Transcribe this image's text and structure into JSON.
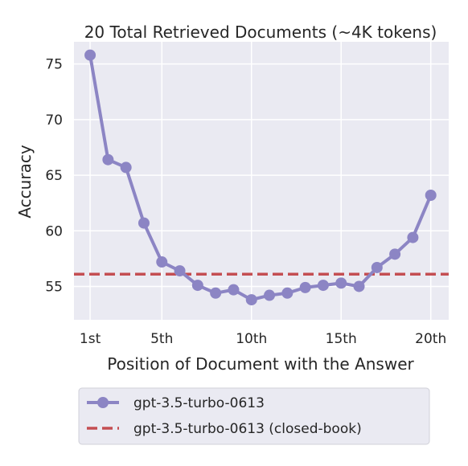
{
  "chart_data": {
    "type": "line",
    "title": "20 Total Retrieved Documents (~4K tokens)",
    "xlabel": "Position of Document with the Answer",
    "ylabel": "Accuracy",
    "x": [
      1,
      2,
      3,
      4,
      5,
      6,
      7,
      8,
      9,
      10,
      11,
      12,
      13,
      14,
      15,
      16,
      17,
      18,
      19,
      20
    ],
    "xticks": [
      1,
      5,
      10,
      15,
      20
    ],
    "xtick_labels": [
      "1st",
      "5th",
      "10th",
      "15th",
      "20th"
    ],
    "yticks": [
      55,
      60,
      65,
      70,
      75
    ],
    "yticks_labels": [
      "55",
      "60",
      "65",
      "70",
      "75"
    ],
    "xlim": [
      0.1,
      21.0
    ],
    "ylim": [
      52.0,
      77.0
    ],
    "grid": true,
    "legend_position": "bottom",
    "series": [
      {
        "name": "gpt-3.5-turbo-0613",
        "color": "#8c85c4",
        "values": [
          75.8,
          66.4,
          65.7,
          60.7,
          57.2,
          56.4,
          55.1,
          54.4,
          54.7,
          53.8,
          54.2,
          54.4,
          54.9,
          55.1,
          55.3,
          55.0,
          56.7,
          57.9,
          59.4,
          63.2
        ]
      }
    ],
    "reference_line": {
      "name": "gpt-3.5-turbo-0613 (closed-book)",
      "value": 56.1,
      "color": "#c44e52",
      "style": "dashed"
    }
  }
}
